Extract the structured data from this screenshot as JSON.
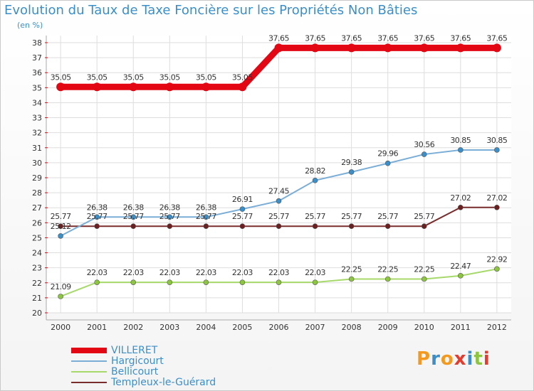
{
  "header": {
    "title": "Evolution du Taux de Taxe Foncière sur les Propriétés Non Bâties",
    "subtitle": "(en %)"
  },
  "logo": {
    "letters": [
      "P",
      "r",
      "o",
      "x",
      "i",
      "t",
      "i"
    ],
    "colors": [
      "#f39a1e",
      "#3a8fc9",
      "#f39a1e",
      "#e53a2e",
      "#3a8fc9",
      "#8cc63f",
      "#e53a2e"
    ]
  },
  "chart_data": {
    "type": "line",
    "title": "Evolution du Taux de Taxe Foncière sur les Propriétés Non Bâties",
    "ylabel": "(en %)",
    "xlabel": "",
    "ylim": [
      20,
      38
    ],
    "yticks": [
      "20",
      "21",
      "22",
      "23",
      "24",
      "25",
      "26",
      "27",
      "28",
      "29",
      "30",
      "31",
      "32",
      "33",
      "34",
      "35",
      "36",
      "37",
      "38"
    ],
    "categories": [
      "2000",
      "2001",
      "2002",
      "2003",
      "2004",
      "2005",
      "2006",
      "2007",
      "2008",
      "2009",
      "2010",
      "2011",
      "2012"
    ],
    "grid": true,
    "series": [
      {
        "name": "VILLERET",
        "color": "#e30613",
        "marker": "#e30613",
        "labels": [
          "35.05",
          "35.05",
          "35.05",
          "35.05",
          "35.05",
          "35.05",
          "37.65",
          "37.65",
          "37.65",
          "37.65",
          "37.65",
          "37.65",
          "37.65"
        ],
        "values": [
          35.05,
          35.05,
          35.05,
          35.05,
          35.05,
          35.05,
          37.65,
          37.65,
          37.65,
          37.65,
          37.65,
          37.65,
          37.65
        ]
      },
      {
        "name": "Hargicourt",
        "color": "#7aaed6",
        "marker": "#3a8fc9",
        "labels": [
          "25.12",
          "26.38",
          "26.38",
          "26.38",
          "26.38",
          "26.91",
          "27.45",
          "28.82",
          "29.38",
          "29.96",
          "30.56",
          "30.85",
          "30.85"
        ],
        "values": [
          25.12,
          26.38,
          26.38,
          26.38,
          26.38,
          26.91,
          27.45,
          28.82,
          29.38,
          29.96,
          30.56,
          30.85,
          30.85
        ]
      },
      {
        "name": "Bellicourt",
        "color": "#a6d96a",
        "marker": "#8cc63f",
        "labels": [
          "21.09",
          "22.03",
          "22.03",
          "22.03",
          "22.03",
          "22.03",
          "22.03",
          "22.03",
          "22.25",
          "22.25",
          "22.25",
          "22.47",
          "22.92"
        ],
        "values": [
          21.09,
          22.03,
          22.03,
          22.03,
          22.03,
          22.03,
          22.03,
          22.03,
          22.25,
          22.25,
          22.25,
          22.47,
          22.92
        ]
      },
      {
        "name": "Templeux-le-Guérard",
        "color": "#7a2d2d",
        "marker": "#6b1f1f",
        "labels": [
          "25.77",
          "25.77",
          "25.77",
          "25.77",
          "25.77",
          "25.77",
          "25.77",
          "25.77",
          "25.77",
          "25.77",
          "25.77",
          "27.02",
          "27.02"
        ],
        "values": [
          25.77,
          25.77,
          25.77,
          25.77,
          25.77,
          25.77,
          25.77,
          25.77,
          25.77,
          25.77,
          25.77,
          27.02,
          27.02
        ]
      }
    ]
  }
}
